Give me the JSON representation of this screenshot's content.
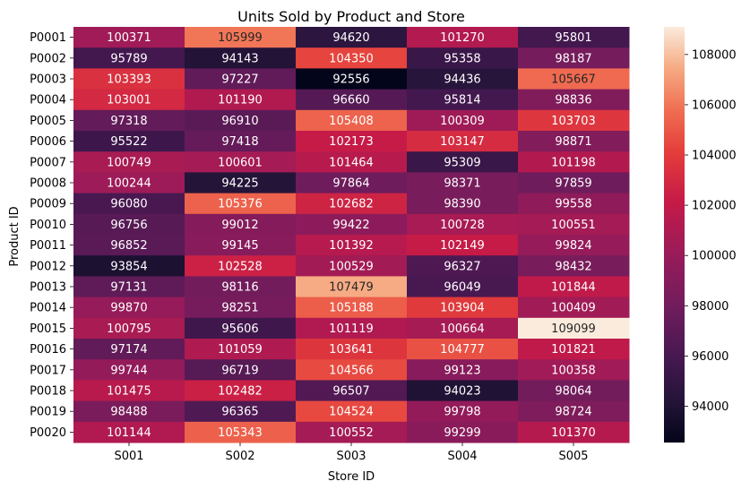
{
  "chart_data": {
    "type": "heatmap",
    "title": "Units Sold by Product and Store",
    "xlabel": "Store ID",
    "ylabel": "Product ID",
    "x_categories": [
      "S001",
      "S002",
      "S003",
      "S004",
      "S005"
    ],
    "y_categories": [
      "P0001",
      "P0002",
      "P0003",
      "P0004",
      "P0005",
      "P0006",
      "P0007",
      "P0008",
      "P0009",
      "P0010",
      "P0011",
      "P0012",
      "P0013",
      "P0014",
      "P0015",
      "P0016",
      "P0017",
      "P0018",
      "P0019",
      "P0020"
    ],
    "values": [
      [
        100371,
        105999,
        94620,
        101270,
        95801
      ],
      [
        95789,
        94143,
        104350,
        95358,
        98187
      ],
      [
        103393,
        97227,
        92556,
        94436,
        105667
      ],
      [
        103001,
        101190,
        96660,
        95814,
        98836
      ],
      [
        97318,
        96910,
        105408,
        100309,
        103703
      ],
      [
        95522,
        97418,
        102173,
        103147,
        98871
      ],
      [
        100749,
        100601,
        101464,
        95309,
        101198
      ],
      [
        100244,
        94225,
        97864,
        98371,
        97859
      ],
      [
        96080,
        105376,
        102682,
        98390,
        99558
      ],
      [
        96756,
        99012,
        99422,
        100728,
        100551
      ],
      [
        96852,
        99145,
        101392,
        102149,
        99824
      ],
      [
        93854,
        102528,
        100529,
        96327,
        98432
      ],
      [
        97131,
        98116,
        107479,
        96049,
        101844
      ],
      [
        99870,
        98251,
        105188,
        103904,
        100409
      ],
      [
        100795,
        95606,
        101119,
        100664,
        109099
      ],
      [
        97174,
        101059,
        103641,
        104777,
        101821
      ],
      [
        99744,
        96719,
        104566,
        99123,
        100358
      ],
      [
        101475,
        102482,
        96507,
        94023,
        98064
      ],
      [
        98488,
        96365,
        104524,
        99798,
        98724
      ],
      [
        101144,
        105343,
        100552,
        99299,
        101370
      ]
    ],
    "colorscale": "rocket",
    "vmin": 92556,
    "vmax": 109099,
    "colorbar_ticks": [
      "94000",
      "96000",
      "98000",
      "100000",
      "102000",
      "104000",
      "106000",
      "108000"
    ],
    "annotations": true,
    "grid": false
  }
}
